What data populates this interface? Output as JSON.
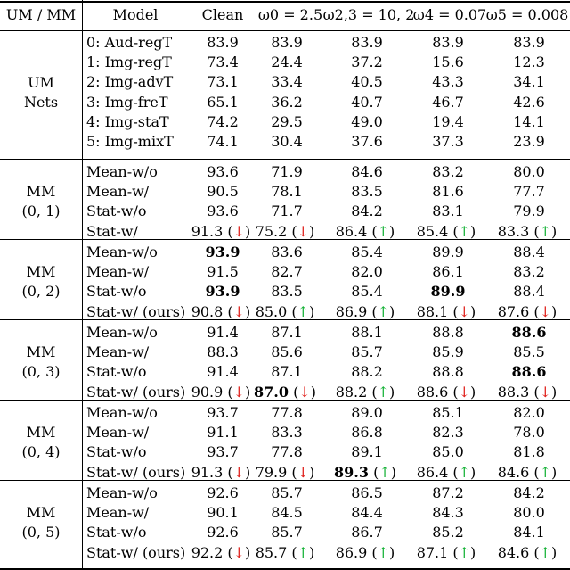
{
  "header": {
    "um_mm": "UM / MM",
    "model": "Model",
    "clean": "Clean",
    "w0": "ω0 = 2.5",
    "w23": "ω2,3 = 10, 2",
    "w4": "ω4 = 0.07",
    "w5": "ω5 = 0.008"
  },
  "colors": {
    "down": "#e0201b",
    "up": "#19b33a"
  },
  "groups": [
    {
      "label": [
        "UM",
        "Nets"
      ],
      "rows": [
        {
          "model": "0: Aud-regT",
          "vals": [
            "83.9",
            "83.9",
            "83.9",
            "83.9",
            "83.9"
          ]
        },
        {
          "model": "1: Img-regT",
          "vals": [
            "73.4",
            "24.4",
            "37.2",
            "15.6",
            "12.3"
          ]
        },
        {
          "model": "2: Img-advT",
          "vals": [
            "73.1",
            "33.4",
            "40.5",
            "43.3",
            "34.1"
          ]
        },
        {
          "model": "3: Img-freT",
          "vals": [
            "65.1",
            "36.2",
            "40.7",
            "46.7",
            "42.6"
          ]
        },
        {
          "model": "4: Img-staT",
          "vals": [
            "74.2",
            "29.5",
            "49.0",
            "19.4",
            "14.1"
          ]
        },
        {
          "model": "5: Img-mixT",
          "vals": [
            "74.1",
            "30.4",
            "37.6",
            "37.3",
            "23.9"
          ]
        }
      ]
    },
    {
      "label": [
        "MM",
        "(0, 1)"
      ],
      "rows": [
        {
          "model": "Mean-w/o",
          "vals": [
            "93.6",
            "71.9",
            "84.6",
            "83.2",
            "80.0"
          ]
        },
        {
          "model": "Mean-w/",
          "vals": [
            "90.5",
            "78.1",
            "83.5",
            "81.6",
            "77.7"
          ]
        },
        {
          "model": "Stat-w/o",
          "vals": [
            "93.6",
            "71.7",
            "84.2",
            "83.1",
            "79.9"
          ]
        },
        {
          "model": "Stat-w/",
          "vals": [
            "91.3",
            "75.2",
            "86.4",
            "85.4",
            "83.3"
          ],
          "arrows": [
            "down",
            "down",
            "up",
            "up",
            "up"
          ]
        }
      ]
    },
    {
      "label": [
        "MM",
        "(0, 2)"
      ],
      "rows": [
        {
          "model": "Mean-w/o",
          "vals": [
            "93.9",
            "83.6",
            "85.4",
            "89.9",
            "88.4"
          ],
          "bold": [
            0
          ]
        },
        {
          "model": "Mean-w/",
          "vals": [
            "91.5",
            "82.7",
            "82.0",
            "86.1",
            "83.2"
          ]
        },
        {
          "model": "Stat-w/o",
          "vals": [
            "93.9",
            "83.5",
            "85.4",
            "89.9",
            "88.4"
          ],
          "bold": [
            0,
            3
          ]
        },
        {
          "model": "Stat-w/ (ours)",
          "vals": [
            "90.8",
            "85.0",
            "86.9",
            "88.1",
            "87.6"
          ],
          "arrows": [
            "down",
            "up",
            "up",
            "down",
            "down"
          ]
        }
      ]
    },
    {
      "label": [
        "MM",
        "(0, 3)"
      ],
      "rows": [
        {
          "model": "Mean-w/o",
          "vals": [
            "91.4",
            "87.1",
            "88.1",
            "88.8",
            "88.6"
          ],
          "bold": [
            4
          ]
        },
        {
          "model": "Mean-w/",
          "vals": [
            "88.3",
            "85.6",
            "85.7",
            "85.9",
            "85.5"
          ]
        },
        {
          "model": "Stat-w/o",
          "vals": [
            "91.4",
            "87.1",
            "88.2",
            "88.8",
            "88.6"
          ],
          "bold": [
            4
          ]
        },
        {
          "model": "Stat-w/ (ours)",
          "vals": [
            "90.9",
            "87.0",
            "88.2",
            "88.6",
            "88.3"
          ],
          "arrows": [
            "down",
            "down",
            "up",
            "down",
            "down"
          ],
          "bold": [
            1
          ]
        }
      ]
    },
    {
      "label": [
        "MM",
        "(0, 4)"
      ],
      "rows": [
        {
          "model": "Mean-w/o",
          "vals": [
            "93.7",
            "77.8",
            "89.0",
            "85.1",
            "82.0"
          ]
        },
        {
          "model": "Mean-w/",
          "vals": [
            "91.1",
            "83.3",
            "86.8",
            "82.3",
            "78.0"
          ]
        },
        {
          "model": "Stat-w/o",
          "vals": [
            "93.7",
            "77.8",
            "89.1",
            "85.0",
            "81.8"
          ]
        },
        {
          "model": "Stat-w/ (ours)",
          "vals": [
            "91.3",
            "79.9",
            "89.3",
            "86.4",
            "84.6"
          ],
          "arrows": [
            "down",
            "down",
            "up",
            "up",
            "up"
          ],
          "bold": [
            2
          ]
        }
      ]
    },
    {
      "label": [
        "MM",
        "(0, 5)"
      ],
      "rows": [
        {
          "model": "Mean-w/o",
          "vals": [
            "92.6",
            "85.7",
            "86.5",
            "87.2",
            "84.2"
          ]
        },
        {
          "model": "Mean-w/",
          "vals": [
            "90.1",
            "84.5",
            "84.4",
            "84.3",
            "80.0"
          ]
        },
        {
          "model": "Stat-w/o",
          "vals": [
            "92.6",
            "85.7",
            "86.7",
            "85.2",
            "84.1"
          ]
        },
        {
          "model": "Stat-w/ (ours)",
          "vals": [
            "92.2",
            "85.7",
            "86.9",
            "87.1",
            "84.6"
          ],
          "arrows": [
            "down",
            "up",
            "up",
            "up",
            "up"
          ]
        }
      ]
    }
  ]
}
